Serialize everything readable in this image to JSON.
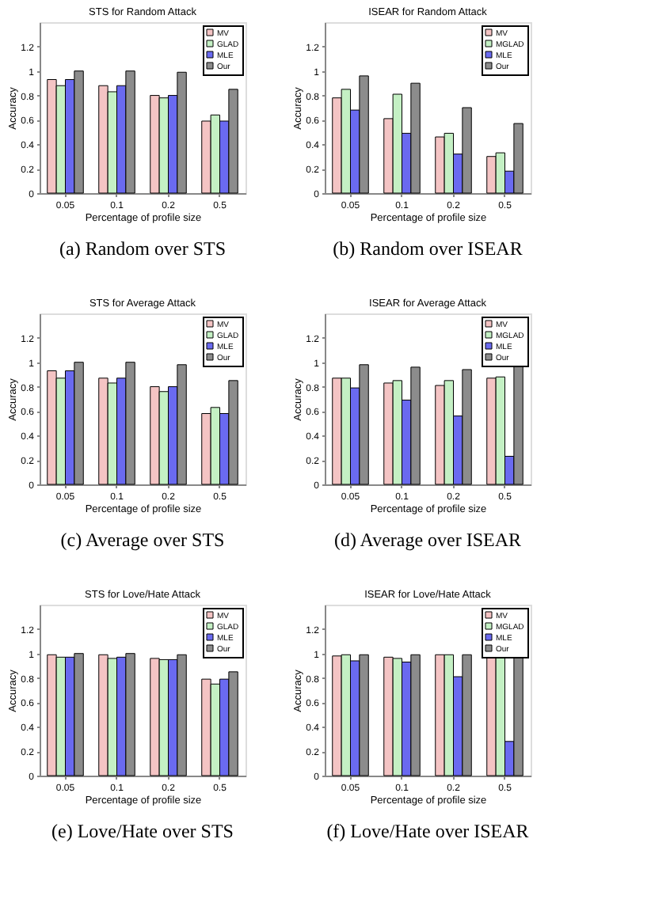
{
  "chart_data": [
    {
      "type": "bar",
      "title": "STS for Random Attack",
      "xlabel": "Percentage of profile size",
      "ylabel": "Accuracy",
      "annotations": [
        "(a) Random over STS"
      ],
      "categories": [
        "0.05",
        "0.1",
        "0.2",
        "0.5"
      ],
      "ylim": [
        0,
        1.4
      ],
      "yticks": [
        0,
        0.2,
        0.4,
        0.6,
        0.8,
        1,
        1.2
      ],
      "grid": false,
      "legend": "top right",
      "series": [
        {
          "name": "MV",
          "color": "#f4c4c4",
          "values": [
            0.93,
            0.88,
            0.8,
            0.59
          ]
        },
        {
          "name": "GLAD",
          "color": "#c4f0c4",
          "values": [
            0.88,
            0.83,
            0.78,
            0.64
          ]
        },
        {
          "name": "MLE",
          "color": "#6a6af0",
          "values": [
            0.93,
            0.88,
            0.8,
            0.59
          ]
        },
        {
          "name": "Our",
          "color": "#8c8c8c",
          "values": [
            1.0,
            1.0,
            0.99,
            0.85
          ]
        }
      ]
    },
    {
      "type": "bar",
      "title": "ISEAR for Random Attack",
      "xlabel": "Percentage of profile size",
      "ylabel": "Accuracy",
      "annotations": [
        "(b) Random over ISEAR"
      ],
      "categories": [
        "0.05",
        "0.1",
        "0.2",
        "0.5"
      ],
      "ylim": [
        0,
        1.4
      ],
      "yticks": [
        0,
        0.2,
        0.4,
        0.6,
        0.8,
        1,
        1.2
      ],
      "grid": false,
      "legend": "top right",
      "series": [
        {
          "name": "MV",
          "color": "#f4c4c4",
          "values": [
            0.78,
            0.61,
            0.46,
            0.3
          ]
        },
        {
          "name": "MGLAD",
          "color": "#c4f0c4",
          "values": [
            0.85,
            0.81,
            0.49,
            0.33
          ]
        },
        {
          "name": "MLE",
          "color": "#6a6af0",
          "values": [
            0.68,
            0.49,
            0.32,
            0.18
          ]
        },
        {
          "name": "Our",
          "color": "#8c8c8c",
          "values": [
            0.96,
            0.9,
            0.7,
            0.57
          ]
        }
      ]
    },
    {
      "type": "bar",
      "title": "STS for Average Attack",
      "xlabel": "Percentage of profile size",
      "ylabel": "Accuracy",
      "annotations": [
        "(c) Average over STS"
      ],
      "categories": [
        "0.05",
        "0.1",
        "0.2",
        "0.5"
      ],
      "ylim": [
        0,
        1.4
      ],
      "yticks": [
        0,
        0.2,
        0.4,
        0.6,
        0.8,
        1,
        1.2
      ],
      "grid": false,
      "legend": "top right",
      "series": [
        {
          "name": "MV",
          "color": "#f4c4c4",
          "values": [
            0.93,
            0.87,
            0.8,
            0.58
          ]
        },
        {
          "name": "GLAD",
          "color": "#c4f0c4",
          "values": [
            0.87,
            0.83,
            0.76,
            0.63
          ]
        },
        {
          "name": "MLE",
          "color": "#6a6af0",
          "values": [
            0.93,
            0.87,
            0.8,
            0.58
          ]
        },
        {
          "name": "Our",
          "color": "#8c8c8c",
          "values": [
            1.0,
            1.0,
            0.98,
            0.85
          ]
        }
      ]
    },
    {
      "type": "bar",
      "title": "ISEAR for Average Attack",
      "xlabel": "Percentage of profile size",
      "ylabel": "Accuracy",
      "annotations": [
        "(d) Average over ISEAR"
      ],
      "categories": [
        "0.05",
        "0.1",
        "0.2",
        "0.5"
      ],
      "ylim": [
        0,
        1.4
      ],
      "yticks": [
        0,
        0.2,
        0.4,
        0.6,
        0.8,
        1,
        1.2
      ],
      "grid": false,
      "legend": "top right",
      "series": [
        {
          "name": "MV",
          "color": "#f4c4c4",
          "values": [
            0.87,
            0.83,
            0.81,
            0.87
          ]
        },
        {
          "name": "MGLAD",
          "color": "#c4f0c4",
          "values": [
            0.87,
            0.85,
            0.85,
            0.88
          ]
        },
        {
          "name": "MLE",
          "color": "#6a6af0",
          "values": [
            0.79,
            0.69,
            0.56,
            0.23
          ]
        },
        {
          "name": "Our",
          "color": "#8c8c8c",
          "values": [
            0.98,
            0.96,
            0.94,
            0.99
          ]
        }
      ]
    },
    {
      "type": "bar",
      "title": "STS for Love/Hate Attack",
      "xlabel": "Percentage of profile size",
      "ylabel": "Accuracy",
      "annotations": [
        "(e) Love/Hate over STS"
      ],
      "categories": [
        "0.05",
        "0.1",
        "0.2",
        "0.5"
      ],
      "ylim": [
        0,
        1.4
      ],
      "yticks": [
        0,
        0.2,
        0.4,
        0.6,
        0.8,
        1,
        1.2
      ],
      "grid": false,
      "legend": "top right",
      "series": [
        {
          "name": "MV",
          "color": "#f4c4c4",
          "values": [
            0.99,
            0.99,
            0.96,
            0.79
          ]
        },
        {
          "name": "GLAD",
          "color": "#c4f0c4",
          "values": [
            0.97,
            0.96,
            0.95,
            0.75
          ]
        },
        {
          "name": "MLE",
          "color": "#6a6af0",
          "values": [
            0.97,
            0.97,
            0.95,
            0.79
          ]
        },
        {
          "name": "Our",
          "color": "#8c8c8c",
          "values": [
            1.0,
            1.0,
            0.99,
            0.85
          ]
        }
      ]
    },
    {
      "type": "bar",
      "title": "ISEAR for Love/Hate Attack",
      "xlabel": "Percentage of profile size",
      "ylabel": "Accuracy",
      "annotations": [
        "(f) Love/Hate over ISEAR"
      ],
      "categories": [
        "0.05",
        "0.1",
        "0.2",
        "0.5"
      ],
      "ylim": [
        0,
        1.4
      ],
      "yticks": [
        0,
        0.2,
        0.4,
        0.6,
        0.8,
        1,
        1.2
      ],
      "grid": false,
      "legend": "top right",
      "series": [
        {
          "name": "MV",
          "color": "#f4c4c4",
          "values": [
            0.98,
            0.97,
            0.99,
            0.99
          ]
        },
        {
          "name": "MGLAD",
          "color": "#c4f0c4",
          "values": [
            0.99,
            0.96,
            0.99,
            0.99
          ]
        },
        {
          "name": "MLE",
          "color": "#6a6af0",
          "values": [
            0.94,
            0.93,
            0.81,
            0.28
          ]
        },
        {
          "name": "Our",
          "color": "#8c8c8c",
          "values": [
            0.99,
            0.99,
            0.99,
            0.98
          ]
        }
      ]
    }
  ]
}
